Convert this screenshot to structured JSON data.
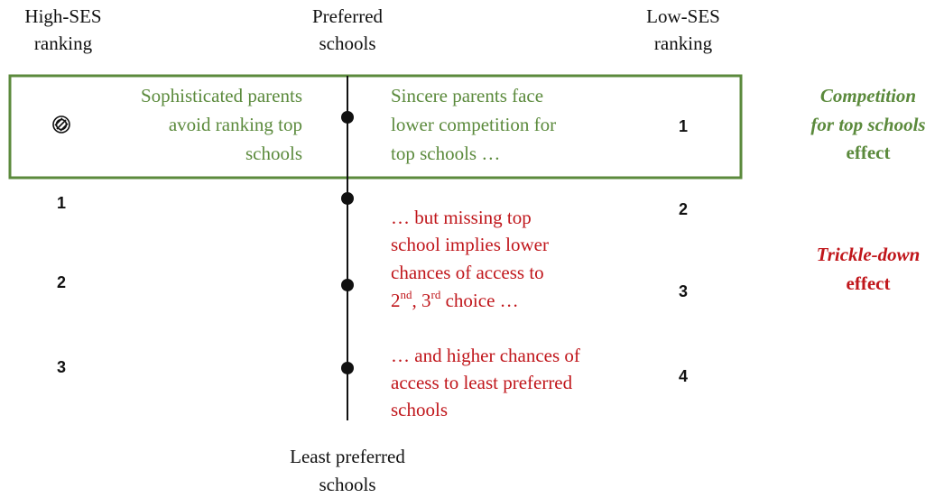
{
  "headers": {
    "high_ses": [
      "High-SES",
      "ranking"
    ],
    "preferred": [
      "Preferred",
      "schools"
    ],
    "low_ses": [
      "Low-SES",
      "ranking"
    ],
    "least_preferred": [
      "Least preferred",
      "schools"
    ]
  },
  "box": {
    "left_text": [
      "Sophisticated parents",
      "avoid ranking top",
      "schools"
    ],
    "right_text": [
      "Sincere parents face",
      "lower competition for",
      "top schools …"
    ],
    "low_rank": 1,
    "effect": [
      "Competition",
      "for top schools",
      "effect"
    ]
  },
  "high_ranks": [
    1,
    2,
    3
  ],
  "low_ranks": [
    2,
    3,
    4
  ],
  "trickle_text": {
    "lines": [
      "… but missing top",
      "school implies lower",
      "chances of access to"
    ],
    "last_line": [
      "2",
      "nd",
      ", 3",
      "rd",
      " choice …"
    ],
    "more": [
      "… and higher chances of",
      "access to least preferred",
      "schools"
    ]
  },
  "trickle_effect": [
    "Trickle-down",
    "effect"
  ]
}
